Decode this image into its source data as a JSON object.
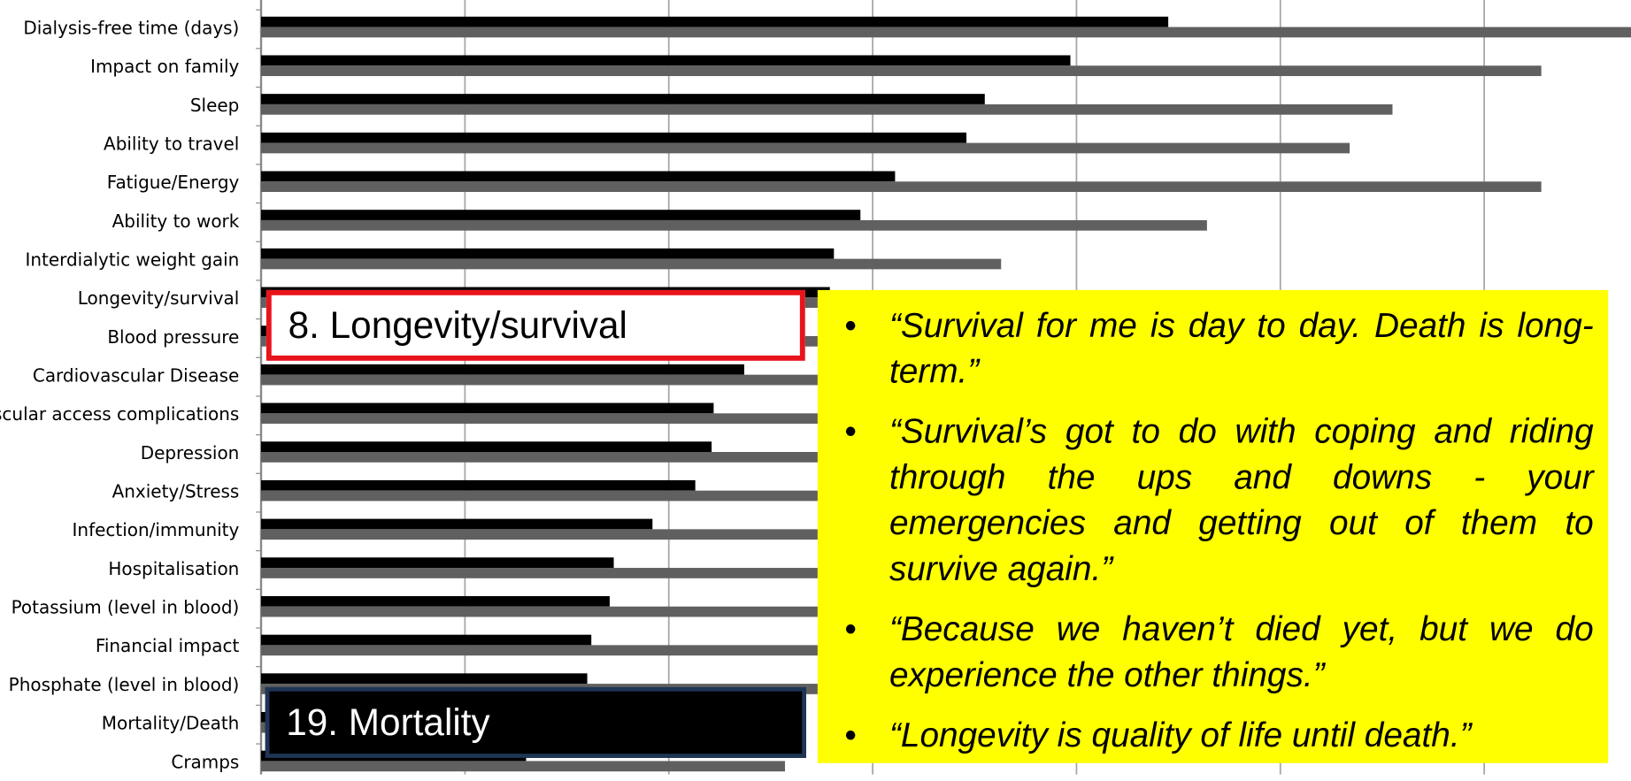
{
  "chart_data": {
    "type": "bar",
    "orientation": "horizontal",
    "categories": [
      "Dialysis-free time (days)",
      "Impact on family",
      "Sleep",
      "Ability to travel",
      "Fatigue/Energy",
      "Ability to work ",
      "Interdialytic weight gain",
      "Longevity/survival",
      "Blood pressure",
      "Cardiovascular Disease",
      "Vascular access complications",
      "Depression",
      "Anxiety/Stress ",
      "Infection/immunity",
      "Hospitalisation",
      "Potassium (level in blood)",
      "Financial impact",
      "Phosphate (level in  blood)",
      "Mortality/Death",
      "Cramps"
    ],
    "series": [
      {
        "color": "#000000",
        "values": [
          4.45,
          3.97,
          3.55,
          3.46,
          3.11,
          2.94,
          2.81,
          2.79,
          2.6,
          2.37,
          2.22,
          2.21,
          2.13,
          1.92,
          1.73,
          1.71,
          1.62,
          1.6,
          1.5,
          1.3
        ]
      },
      {
        "color": "#606060",
        "values": [
          6.8,
          6.28,
          5.55,
          5.34,
          6.28,
          4.64,
          3.63,
          3.5,
          3.3,
          3.2,
          3.0,
          3.1,
          2.9,
          2.9,
          2.8,
          2.8,
          2.9,
          2.8,
          2.6,
          2.57
        ]
      }
    ],
    "xlim": [
      0,
      6.72
    ],
    "xticks": [
      0,
      1,
      2,
      3,
      4,
      5,
      6
    ],
    "grid": true,
    "annotations": {
      "highlight_top": "8. Longevity/survival",
      "highlight_bottom": "19. Mortality",
      "quotes": [
        "“Survival for me is day to day. Death is long-term.”",
        "“Survival’s got to do with coping and riding through the ups and downs -  your emergencies and getting out of them to survive again.”",
        "“Because we haven’t died yet, but we do experience the other things.”",
        "“Longevity is quality of life until death.”"
      ]
    }
  }
}
